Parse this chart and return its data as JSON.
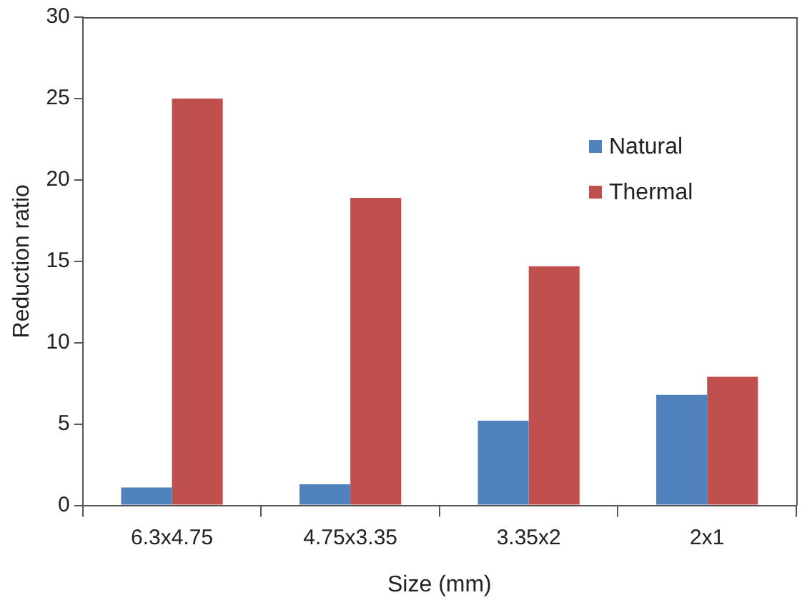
{
  "chart_data": {
    "type": "bar",
    "xlabel": "Size (mm)",
    "ylabel": "Reduction ratio",
    "categories": [
      "6.3x4.75",
      "4.75x3.35",
      "3.35x2",
      "2x1"
    ],
    "series": [
      {
        "name": "Natural",
        "color": "#4f81bd",
        "values": [
          1.1,
          1.3,
          5.2,
          6.8
        ]
      },
      {
        "name": "Thermal",
        "color": "#c0504d",
        "values": [
          25.0,
          18.9,
          14.7,
          7.9
        ]
      }
    ],
    "ylim": [
      0,
      30
    ],
    "yticks": [
      0,
      5,
      10,
      15,
      20,
      25,
      30
    ],
    "grid": false,
    "legend": "top right"
  }
}
